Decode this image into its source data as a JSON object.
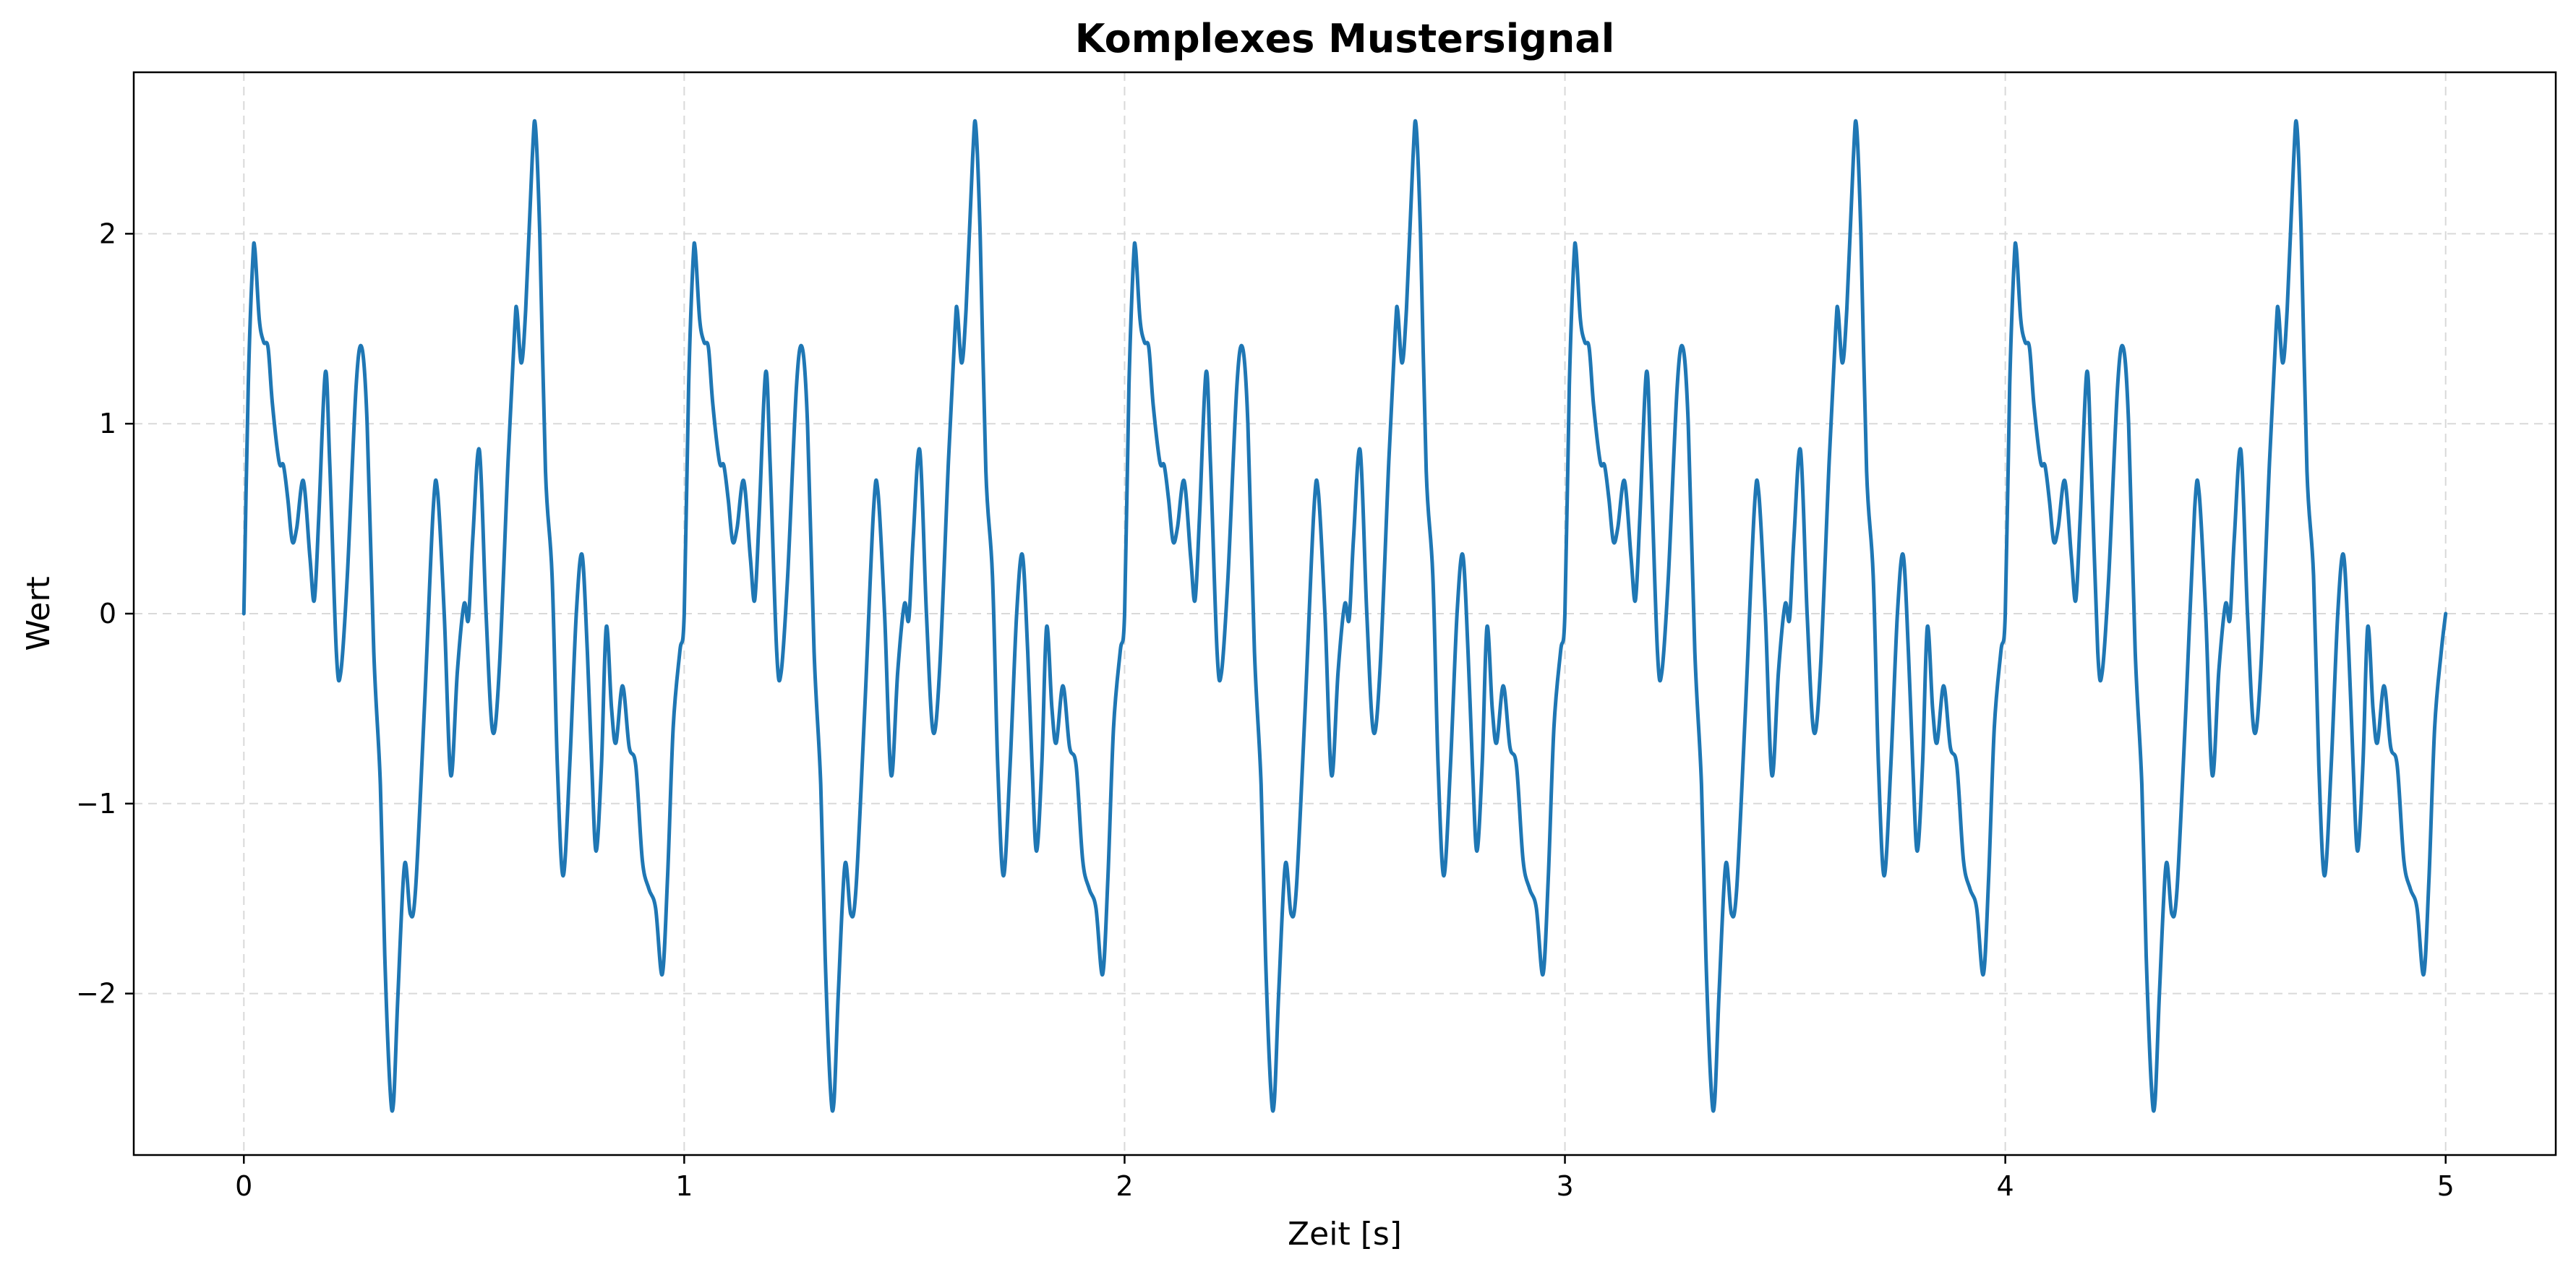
{
  "chart_data": {
    "type": "line",
    "title": "Komplexes Mustersignal",
    "xlabel": "Zeit [s]",
    "ylabel": "Wert",
    "xlim": [
      -0.25,
      5.25
    ],
    "ylim": [
      -2.85,
      2.85
    ],
    "xticks": [
      0,
      1,
      2,
      3,
      4,
      5
    ],
    "xtick_labels": [
      "0",
      "1",
      "2",
      "3",
      "4",
      "5"
    ],
    "yticks": [
      -2,
      -1,
      0,
      1,
      2
    ],
    "ytick_labels": [
      "−2",
      "−1",
      "0",
      "1",
      "2"
    ],
    "grid": true,
    "period": 1,
    "series": [
      {
        "color": "#1f77b4",
        "x_range": [
          0,
          5
        ],
        "one_period_points": [
          [
            0.0,
            0.0
          ],
          [
            0.01,
            1.2
          ],
          [
            0.02,
            1.85
          ],
          [
            0.025,
            1.92
          ],
          [
            0.035,
            1.55
          ],
          [
            0.045,
            1.43
          ],
          [
            0.055,
            1.4
          ],
          [
            0.065,
            1.1
          ],
          [
            0.08,
            0.8
          ],
          [
            0.09,
            0.78
          ],
          [
            0.1,
            0.6
          ],
          [
            0.11,
            0.38
          ],
          [
            0.12,
            0.45
          ],
          [
            0.135,
            0.7
          ],
          [
            0.15,
            0.3
          ],
          [
            0.16,
            0.07
          ],
          [
            0.17,
            0.5
          ],
          [
            0.185,
            1.27
          ],
          [
            0.195,
            0.8
          ],
          [
            0.21,
            -0.2
          ],
          [
            0.22,
            -0.31
          ],
          [
            0.235,
            0.2
          ],
          [
            0.255,
            1.2
          ],
          [
            0.268,
            1.4
          ],
          [
            0.28,
            1.0
          ],
          [
            0.295,
            -0.2
          ],
          [
            0.31,
            -0.9
          ],
          [
            0.32,
            -1.8
          ],
          [
            0.332,
            -2.5
          ],
          [
            0.34,
            -2.57
          ],
          [
            0.35,
            -2.0
          ],
          [
            0.365,
            -1.32
          ],
          [
            0.378,
            -1.58
          ],
          [
            0.39,
            -1.45
          ],
          [
            0.41,
            -0.5
          ],
          [
            0.43,
            0.55
          ],
          [
            0.44,
            0.64
          ],
          [
            0.455,
            0.0
          ],
          [
            0.47,
            -0.85
          ],
          [
            0.485,
            -0.3
          ],
          [
            0.5,
            0.05
          ],
          [
            0.51,
            -0.03
          ],
          [
            0.52,
            0.4
          ],
          [
            0.535,
            0.86
          ],
          [
            0.55,
            0.0
          ],
          [
            0.565,
            -0.62
          ],
          [
            0.58,
            -0.3
          ],
          [
            0.6,
            0.8
          ],
          [
            0.615,
            1.5
          ],
          [
            0.62,
            1.6
          ],
          [
            0.63,
            1.32
          ],
          [
            0.64,
            1.6
          ],
          [
            0.655,
            2.4
          ],
          [
            0.662,
            2.57
          ],
          [
            0.672,
            2.0
          ],
          [
            0.685,
            0.75
          ],
          [
            0.7,
            0.2
          ],
          [
            0.712,
            -0.8
          ],
          [
            0.725,
            -1.38
          ],
          [
            0.74,
            -0.8
          ],
          [
            0.755,
            0.0
          ],
          [
            0.768,
            0.31
          ],
          [
            0.78,
            -0.2
          ],
          [
            0.79,
            -0.8
          ],
          [
            0.8,
            -1.25
          ],
          [
            0.812,
            -0.8
          ],
          [
            0.823,
            -0.07
          ],
          [
            0.835,
            -0.5
          ],
          [
            0.845,
            -0.68
          ],
          [
            0.86,
            -0.38
          ],
          [
            0.875,
            -0.7
          ],
          [
            0.89,
            -0.8
          ],
          [
            0.905,
            -1.3
          ],
          [
            0.92,
            -1.45
          ],
          [
            0.935,
            -1.55
          ],
          [
            0.95,
            -1.9
          ],
          [
            0.962,
            -1.4
          ],
          [
            0.975,
            -0.6
          ],
          [
            0.99,
            -0.2
          ],
          [
            1.0,
            0.0
          ]
        ]
      }
    ]
  }
}
